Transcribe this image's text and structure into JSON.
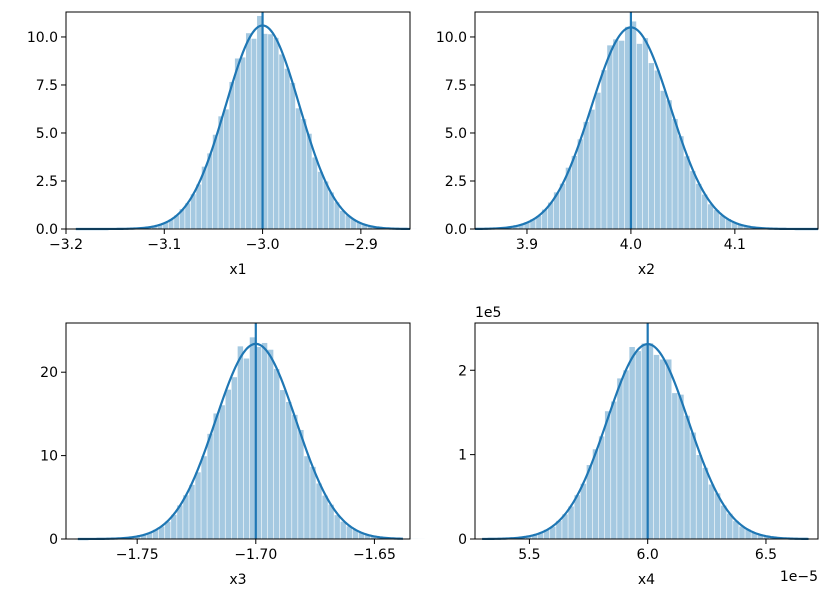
{
  "chart_data": [
    {
      "type": "histogram",
      "xlabel": "x1",
      "xlim": [
        -3.2,
        -2.85
      ],
      "ylim": [
        0,
        11.3
      ],
      "xticks": [
        -3.2,
        -3.1,
        -3.0,
        -2.9
      ],
      "xtick_labels": [
        "−3.2",
        "−3.1",
        "−3.0",
        "−2.9"
      ],
      "yticks": [
        0,
        2.5,
        5,
        7.5,
        10
      ],
      "ytick_labels": [
        "0.0",
        "2.5",
        "5.0",
        "7.5",
        "10.0"
      ],
      "mean": -3.0,
      "std": 0.0375,
      "peak_density": 10.6,
      "kde_range": [
        -3.19,
        -2.85
      ],
      "vline": -3.0,
      "offset_text": "",
      "x_offset_text": ""
    },
    {
      "type": "histogram",
      "xlabel": "x2",
      "xlim": [
        3.85,
        4.18
      ],
      "ylim": [
        0,
        11.3
      ],
      "xticks": [
        3.9,
        4.0,
        4.1
      ],
      "xtick_labels": [
        "3.9",
        "4.0",
        "4.1"
      ],
      "yticks": [
        0,
        2.5,
        5,
        7.5,
        10
      ],
      "ytick_labels": [
        "0.0",
        "2.5",
        "5.0",
        "7.5",
        "10.0"
      ],
      "mean": 4.0,
      "std": 0.038,
      "peak_density": 10.5,
      "kde_range": [
        3.85,
        4.18
      ],
      "vline": 4.0,
      "offset_text": "",
      "x_offset_text": ""
    },
    {
      "type": "histogram",
      "xlabel": "x3",
      "xlim": [
        -1.78,
        -1.635
      ],
      "ylim": [
        0,
        25.9
      ],
      "xticks": [
        -1.75,
        -1.7,
        -1.65
      ],
      "xtick_labels": [
        "−1.75",
        "−1.70",
        "−1.65"
      ],
      "yticks": [
        0,
        10,
        20
      ],
      "ytick_labels": [
        "0",
        "10",
        "20"
      ],
      "mean": -1.7,
      "std": 0.017,
      "peak_density": 23.4,
      "kde_range": [
        -1.775,
        -1.638
      ],
      "vline": -1.7,
      "offset_text": "",
      "x_offset_text": ""
    },
    {
      "type": "histogram",
      "xlabel": "x4",
      "xlim": [
        5.27,
        6.72
      ],
      "ylim": [
        0,
        2.56
      ],
      "xticks": [
        5.5,
        6.0,
        6.5
      ],
      "xtick_labels": [
        "5.5",
        "6.0",
        "6.5"
      ],
      "yticks": [
        0,
        1,
        2
      ],
      "ytick_labels": [
        "0",
        "1",
        "2"
      ],
      "mean": 6.0,
      "std": 0.172,
      "peak_density": 2.31,
      "kde_range": [
        5.3,
        6.68
      ],
      "vline": 6.0,
      "offset_text": "1e5",
      "x_offset_text": "1e−5"
    }
  ],
  "colors": {
    "hist_fill": "#1f77b4",
    "hist_alpha": 0.4,
    "line": "#1f77b4",
    "frame": "#000000"
  }
}
